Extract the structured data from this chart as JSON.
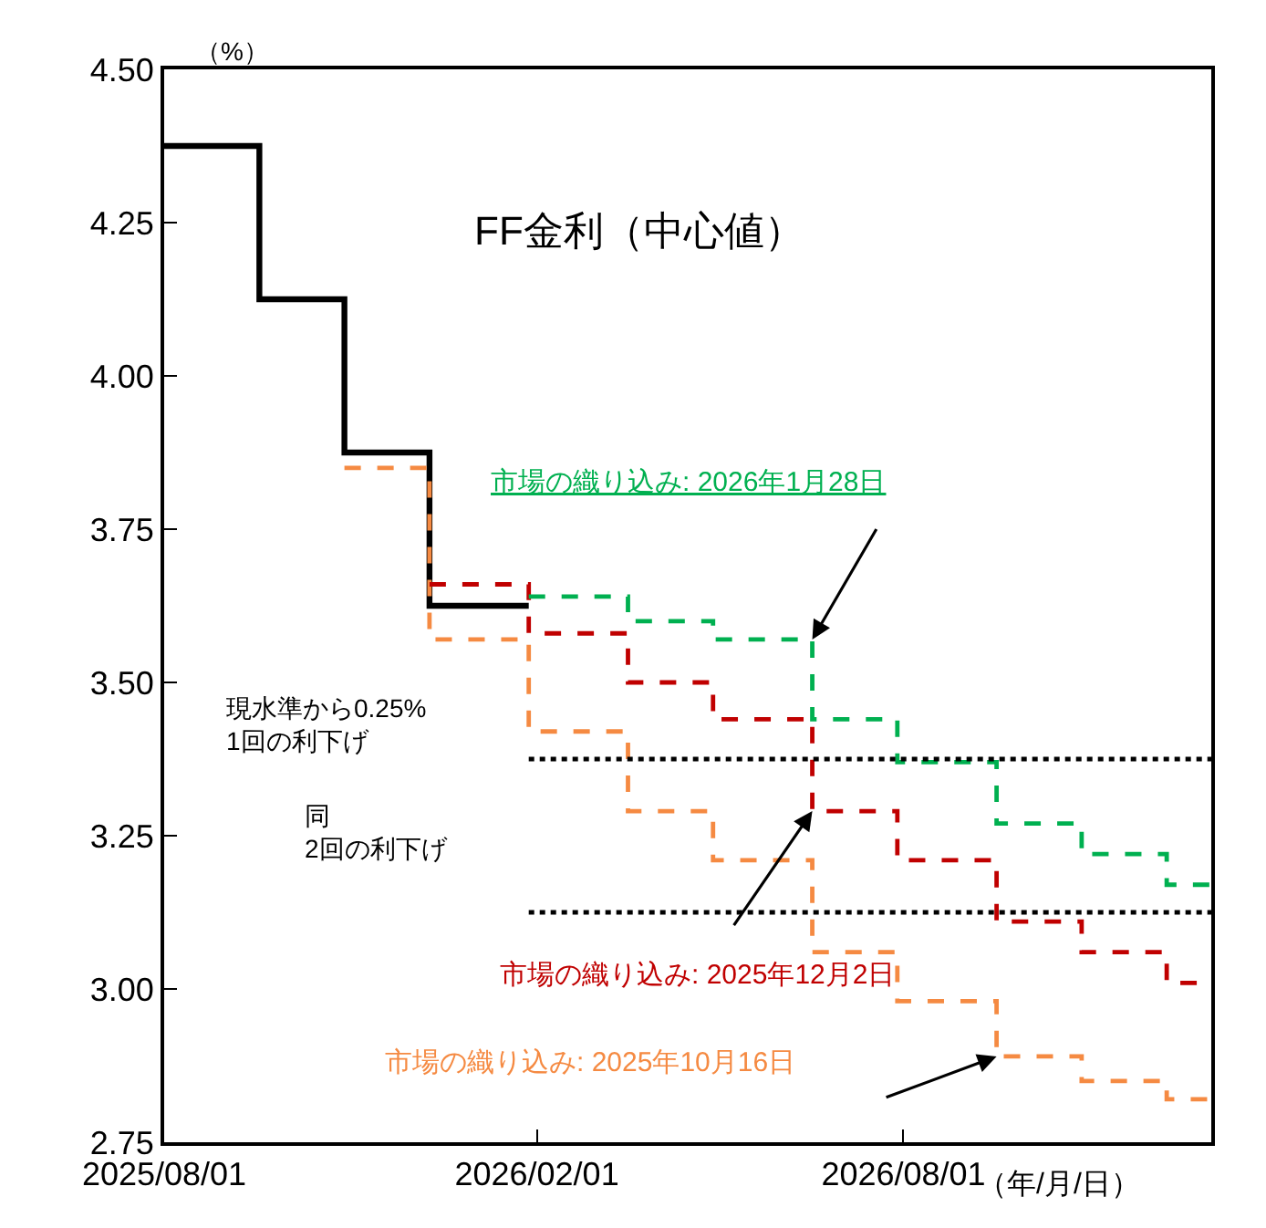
{
  "chart_data": {
    "type": "step",
    "ylabel": "（%）",
    "xlabel": "（年/月/日）",
    "xlim": [
      "2025-08-01",
      "2026-12-31"
    ],
    "xticks": [
      {
        "value": "2025-08-01",
        "label": "2025/08/01"
      },
      {
        "value": "2026-02-01",
        "label": "2026/02/01"
      },
      {
        "value": "2026-08-01",
        "label": "2026/08/01"
      }
    ],
    "ylim": [
      2.75,
      4.5
    ],
    "yticks": [
      2.75,
      {
        "value": 3.0,
        "label": "3.00"
      },
      3.25,
      {
        "value": 3.5,
        "label": "3.50"
      },
      3.75,
      {
        "value": 4.0,
        "label": "4.00"
      },
      4.25,
      {
        "value": 4.5,
        "label": "4.50"
      }
    ],
    "legend": false,
    "marker": "none",
    "series": [
      {
        "name": "FF金利（中心値）",
        "color": "#000000",
        "line_style": "solid",
        "x": [
          "2025-08-01",
          "2025-09-17",
          "2025-10-29",
          "2025-12-10",
          "2026-01-28"
        ],
        "values": [
          4.375,
          4.125,
          3.875,
          3.625,
          3.625
        ]
      },
      {
        "name": "市場の織り込み: 2025年10月16日",
        "color": "#f58a42",
        "line_style": "dashed",
        "x": [
          "2025-10-29",
          "2025-12-10",
          "2026-01-28",
          "2026-03-18",
          "2026-04-29",
          "2026-06-17",
          "2026-07-29",
          "2026-09-16",
          "2026-10-28",
          "2026-12-09",
          "2026-12-31"
        ],
        "values": [
          3.85,
          3.57,
          3.42,
          3.29,
          3.21,
          3.06,
          2.98,
          2.89,
          2.85,
          2.82,
          2.82
        ]
      },
      {
        "name": "市場の織り込み: 2025年12月2日",
        "color": "#c00000",
        "line_style": "dashed",
        "x": [
          "2025-12-10",
          "2026-01-28",
          "2026-03-18",
          "2026-04-29",
          "2026-06-17",
          "2026-07-29",
          "2026-09-16",
          "2026-10-28",
          "2026-12-09",
          "2026-12-31"
        ],
        "values": [
          3.66,
          3.58,
          3.5,
          3.44,
          3.29,
          3.21,
          3.11,
          3.06,
          3.01,
          3.01
        ]
      },
      {
        "name": "市場の織り込み: 2026年1月28日",
        "color": "#00b050",
        "line_style": "dashed",
        "x": [
          "2026-01-28",
          "2026-03-18",
          "2026-04-29",
          "2026-06-17",
          "2026-07-29",
          "2026-09-16",
          "2026-10-28",
          "2026-12-09",
          "2026-12-31"
        ],
        "values": [
          3.64,
          3.6,
          3.57,
          3.44,
          3.37,
          3.27,
          3.22,
          3.17,
          3.17
        ]
      },
      {
        "type": "line",
        "color": "#000000",
        "line_style": "dotted",
        "x": [
          "2026-01-28",
          "2026-12-31"
        ],
        "values": [
          3.375,
          3.375
        ]
      },
      {
        "type": "line",
        "color": "#000000",
        "line_style": "dotted",
        "x": [
          "2026-01-28",
          "2026-12-31"
        ],
        "values": [
          3.125,
          3.125
        ]
      }
    ],
    "annotations": [
      "現水準から0.25%\n1回の利下げ",
      "同\n2回の利下げ"
    ]
  }
}
